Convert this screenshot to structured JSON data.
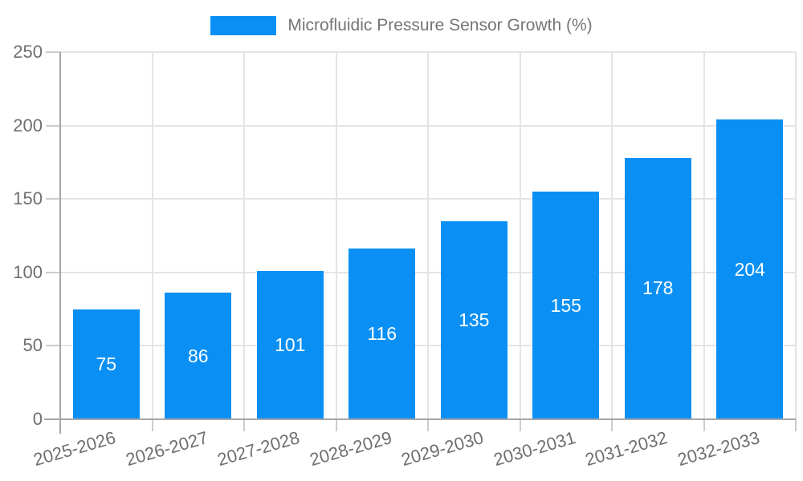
{
  "chart_data": {
    "type": "bar",
    "legend_label": "Microfluidic Pressure Sensor Growth (%)",
    "legend_position": "top",
    "categories": [
      "2025-2026",
      "2026-2027",
      "2027-2028",
      "2028-2029",
      "2029-2030",
      "2030-2031",
      "2031-2032",
      "2032-2033"
    ],
    "values": [
      75,
      86,
      101,
      116,
      135,
      155,
      178,
      204
    ],
    "xlabel": "",
    "ylabel": "",
    "ylim": [
      0,
      250
    ],
    "yticks": [
      0,
      50,
      100,
      150,
      200,
      250
    ],
    "grid": true,
    "bar_color": "#0a90f5",
    "value_label_color": "#ffffff",
    "axis_text_color": "#6f6f6f",
    "legend_text_color": "#757575",
    "grid_color": "#e4e4e4",
    "tick_color": "#cccccc",
    "axis_line_color": "#a6a6a6"
  }
}
